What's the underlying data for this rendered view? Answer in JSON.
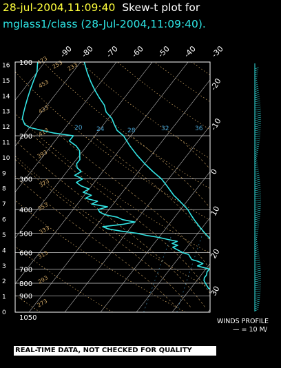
{
  "header": {
    "datetime": "28-jul-2004,11:09:40",
    "title_suffix": "Skew-t plot for",
    "subtitle": "mglass1/class (28-Jul-2004,11:09:40)."
  },
  "notice": "REAL-TIME DATA, NOT CHECKED FOR QUALITY",
  "winds": {
    "label": "WINDS PROFILE",
    "scale": "— = 10 M/"
  },
  "colors": {
    "background": "#000000",
    "temperature_trace": "#33e6e6",
    "dewpoint_trace": "#33e6e6",
    "isobars": "#d0d0d0",
    "isotherms": "#d0d0d0",
    "dry_adiabats": "#c8a060",
    "moist_adiabats": "#c8a060",
    "mixing_ratio": "#4aa8d8",
    "height_labels": "#ffffff",
    "title_date": "#ffff3c",
    "subtitle": "#2ee6e6"
  },
  "chart_data": {
    "type": "line",
    "diagram": "skew-t log-p",
    "pressure_levels": [
      100,
      200,
      300,
      400,
      500,
      600,
      700,
      800,
      900,
      1050
    ],
    "pressure_labels": [
      "100",
      "200",
      "300",
      "400",
      "500",
      "600",
      "700",
      "800",
      "900",
      "1050"
    ],
    "height_labels": [
      "0",
      "1",
      "2",
      "3",
      "4",
      "5",
      "6",
      "7",
      "8",
      "9",
      "10",
      "11",
      "12",
      "13",
      "14",
      "15",
      "16"
    ],
    "top_temp_labels": [
      "-90",
      "-80",
      "-70",
      "-60",
      "-50",
      "-40",
      "-30"
    ],
    "right_temp_labels": [
      "-20",
      "-10",
      "0",
      "10",
      "20",
      "30"
    ],
    "mixing_ratio_labels": [
      "20",
      "24",
      "28",
      "32",
      "36"
    ],
    "adiabat_labels": [
      "473",
      "453",
      "433",
      "413",
      "393",
      "373",
      "353",
      "333",
      "313",
      "293",
      "273",
      "253",
      "233"
    ],
    "xlim": [
      -40,
      40
    ],
    "ylim": [
      1050,
      100
    ],
    "series": [
      {
        "role": "temperature",
        "points": [
          [
            1000,
            30
          ],
          [
            960,
            27
          ],
          [
            920,
            25
          ],
          [
            880,
            22
          ],
          [
            850,
            20
          ],
          [
            820,
            17
          ],
          [
            790,
            14
          ],
          [
            760,
            12
          ],
          [
            720,
            9
          ],
          [
            700,
            7.5
          ],
          [
            680,
            6
          ],
          [
            650,
            4
          ],
          [
            620,
            2
          ],
          [
            600,
            0.5
          ],
          [
            570,
            -2
          ],
          [
            550,
            -3.5
          ],
          [
            520,
            -6
          ],
          [
            500,
            -8
          ],
          [
            470,
            -11
          ],
          [
            440,
            -14
          ],
          [
            420,
            -16
          ],
          [
            400,
            -18
          ],
          [
            370,
            -22
          ],
          [
            350,
            -25
          ],
          [
            320,
            -29
          ],
          [
            300,
            -32
          ],
          [
            280,
            -36
          ],
          [
            260,
            -40
          ],
          [
            240,
            -44
          ],
          [
            220,
            -48
          ],
          [
            200,
            -52
          ],
          [
            190,
            -55
          ],
          [
            180,
            -57
          ],
          [
            170,
            -59
          ],
          [
            160,
            -62
          ],
          [
            150,
            -64
          ],
          [
            140,
            -67
          ],
          [
            130,
            -70
          ],
          [
            120,
            -73
          ],
          [
            110,
            -76
          ],
          [
            100,
            -79
          ]
        ]
      },
      {
        "role": "dewpoint",
        "points": [
          [
            1000,
            22
          ],
          [
            980,
            21.5
          ],
          [
            960,
            21
          ],
          [
            940,
            18
          ],
          [
            920,
            12
          ],
          [
            900,
            11
          ],
          [
            880,
            10
          ],
          [
            860,
            8
          ],
          [
            840,
            5
          ],
          [
            820,
            4
          ],
          [
            800,
            3
          ],
          [
            780,
            2
          ],
          [
            760,
            1.5
          ],
          [
            740,
            1.5
          ],
          [
            720,
            1
          ],
          [
            700,
            1
          ],
          [
            690,
            -1
          ],
          [
            680,
            -3
          ],
          [
            665,
            -2
          ],
          [
            650,
            -4
          ],
          [
            640,
            -6
          ],
          [
            625,
            -7
          ],
          [
            610,
            -8
          ],
          [
            600,
            -10
          ],
          [
            585,
            -12
          ],
          [
            570,
            -14
          ],
          [
            560,
            -13
          ],
          [
            550,
            -15
          ],
          [
            540,
            -14
          ],
          [
            530,
            -17
          ],
          [
            520,
            -20
          ],
          [
            510,
            -24
          ],
          [
            500,
            -27
          ],
          [
            490,
            -32
          ],
          [
            480,
            -36
          ],
          [
            470,
            -38
          ],
          [
            460,
            -33
          ],
          [
            450,
            -30
          ],
          [
            440,
            -34
          ],
          [
            430,
            -36
          ],
          [
            420,
            -40
          ],
          [
            410,
            -42
          ],
          [
            400,
            -43
          ],
          [
            390,
            -41
          ],
          [
            380,
            -46
          ],
          [
            370,
            -45
          ],
          [
            360,
            -49
          ],
          [
            350,
            -48
          ],
          [
            340,
            -51
          ],
          [
            330,
            -50
          ],
          [
            320,
            -53
          ],
          [
            310,
            -55
          ],
          [
            300,
            -54
          ],
          [
            290,
            -57
          ],
          [
            280,
            -56
          ],
          [
            270,
            -58
          ],
          [
            260,
            -59
          ],
          [
            250,
            -59
          ],
          [
            240,
            -60
          ],
          [
            230,
            -61
          ],
          [
            220,
            -63
          ],
          [
            210,
            -66
          ],
          [
            200,
            -66
          ],
          [
            195,
            -72
          ],
          [
            190,
            -76
          ],
          [
            185,
            -80
          ],
          [
            180,
            -82
          ],
          [
            175,
            -83
          ],
          [
            170,
            -84
          ],
          [
            160,
            -85
          ],
          [
            150,
            -86
          ],
          [
            140,
            -87
          ],
          [
            130,
            -88
          ],
          [
            120,
            -89
          ],
          [
            110,
            -90
          ],
          [
            100,
            -92
          ]
        ]
      }
    ]
  }
}
